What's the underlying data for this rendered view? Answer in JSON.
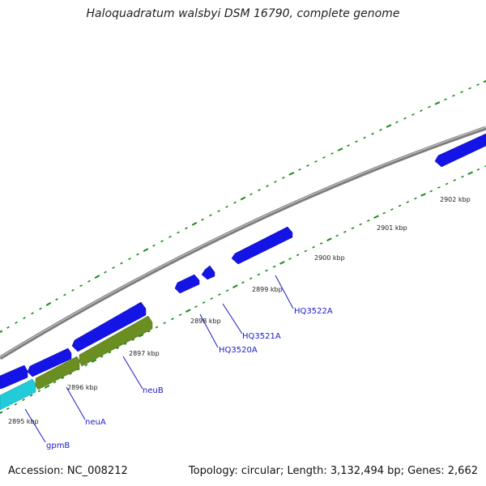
{
  "title": "Haloquadratum walsbyi DSM 16790, complete genome",
  "footer": {
    "accession": "Accession: NC_008212",
    "stats": "Topology: circular; Length: 3,132,494 bp; Genes: 2,662"
  },
  "colors": {
    "backbone": "#8a8a8a",
    "tick": "#1a8a1a",
    "gene_blue": "#1010ee",
    "gene_olive": "#6b8e23",
    "gene_cyan": "#20c8d8",
    "gene_label": "#1a1acc",
    "kbp_label": "#222222"
  },
  "kbp_labels": [
    "2895 kbp",
    "2896 kbp",
    "2897 kbp",
    "2898 kbp",
    "2899 kbp",
    "2900 kbp",
    "2901 kbp",
    "2902 kbp"
  ],
  "gene_labels": [
    "gpmB",
    "neuA",
    "neuB",
    "HQ3520A",
    "HQ3521A",
    "HQ3522A"
  ]
}
